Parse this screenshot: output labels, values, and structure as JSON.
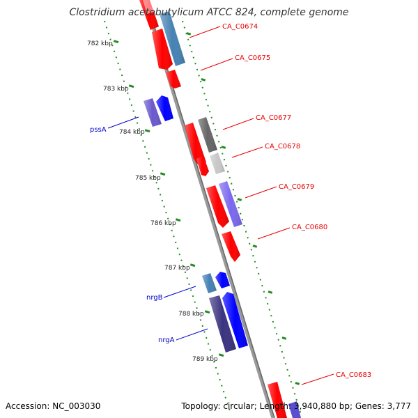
{
  "title": "Clostridium acetobutylicum ATCC 824, complete genome",
  "footer": {
    "accession": "Accession: NC_003030",
    "summary": "Topology: circular; Length: 3,940,880 bp; Genes: 3,777"
  },
  "ticks": [
    "782 kbp",
    "783 kbp",
    "784 kbp",
    "785 kbp",
    "786 kbp",
    "787 kbp",
    "788 kbp",
    "789 kbp"
  ],
  "gene_labels": {
    "red": [
      "CA_C0674",
      "CA_C0675",
      "CA_C0677",
      "CA_C0678",
      "CA_C0679",
      "CA_C0680",
      "CA_C0683"
    ],
    "blue": [
      "pssA",
      "nrgB",
      "nrgA"
    ]
  },
  "colors": {
    "red": "#ff0000",
    "blue": "#0000ff",
    "steel_blue": "#4682b4",
    "purple": "#5a4fcf",
    "dark_slate": "#3a3380",
    "gray": "#666666",
    "light_gray": "#c8c8c8",
    "backbone": "#888888",
    "tick": "#228b22"
  }
}
